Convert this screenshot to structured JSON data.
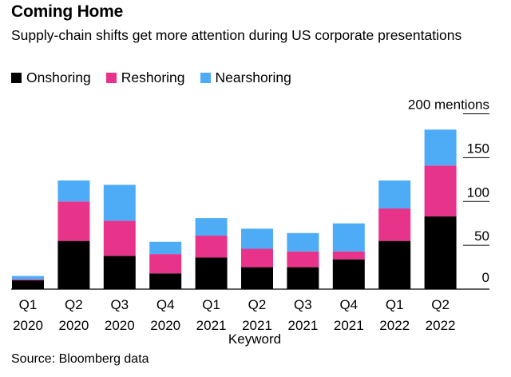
{
  "header": {
    "title": "Coming Home",
    "subtitle": "Supply-chain shifts get more attention during US corporate presentations"
  },
  "footer": {
    "source": "Source: Bloomberg data"
  },
  "chart_data": {
    "type": "bar",
    "stacked": true,
    "title": "Coming Home",
    "subtitle": "Supply-chain shifts get more attention during US corporate presentations",
    "xlabel": "Keyword",
    "ylabel": "mentions",
    "ylim": [
      0,
      200
    ],
    "yticks": [
      0,
      50,
      100,
      150,
      200
    ],
    "ytick_labels": [
      "0",
      "50",
      "100",
      "150",
      "200 mentions"
    ],
    "y_axis_position": "right",
    "legend_position": "top-left",
    "categories": [
      [
        "Q1",
        "2020"
      ],
      [
        "Q2",
        "2020"
      ],
      [
        "Q3",
        "2020"
      ],
      [
        "Q4",
        "2020"
      ],
      [
        "Q1",
        "2021"
      ],
      [
        "Q2",
        "2021"
      ],
      [
        "Q3",
        "2021"
      ],
      [
        "Q4",
        "2021"
      ],
      [
        "Q1",
        "2022"
      ],
      [
        "Q2",
        "2022"
      ]
    ],
    "series": [
      {
        "name": "Onshoring",
        "color": "#000000",
        "values": [
          10,
          55,
          38,
          18,
          36,
          25,
          25,
          34,
          55,
          83
        ]
      },
      {
        "name": "Reshoring",
        "color": "#e8338a",
        "values": [
          1,
          45,
          40,
          22,
          25,
          21,
          18,
          9,
          37,
          58
        ]
      },
      {
        "name": "Nearshoring",
        "color": "#4eacf6",
        "values": [
          4,
          24,
          41,
          14,
          20,
          23,
          21,
          32,
          32,
          41
        ]
      }
    ]
  }
}
